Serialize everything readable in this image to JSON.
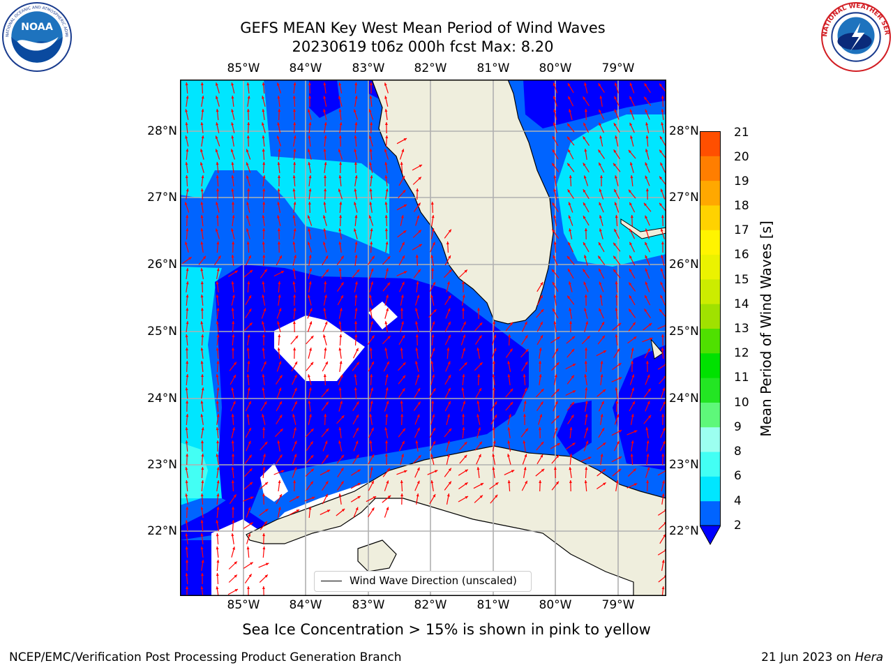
{
  "title_line1": "GEFS MEAN Key West Mean Period of Wind Waves",
  "title_line2": "20230619 t06z 000h fcst   Max: 8.20",
  "logos": {
    "left": "NOAA",
    "right": "NATIONAL WEATHER SERVICE"
  },
  "map": {
    "lon_labels": [
      "85°W",
      "84°W",
      "83°W",
      "82°W",
      "81°W",
      "80°W",
      "79°W"
    ],
    "lat_labels": [
      "28°N",
      "27°N",
      "26°N",
      "25°N",
      "24°N",
      "23°N",
      "22°N"
    ],
    "legend": "Wind Wave Direction (unscaled)",
    "arrow_color": "#ff0000",
    "land_color": "#efeedd",
    "grid_color": "#b0b0b0"
  },
  "colorbar": {
    "label": "Mean Period of Wind Waves [s]",
    "ticks": [
      "2",
      "4",
      "6",
      "8",
      "9",
      "10",
      "11",
      "12",
      "13",
      "14",
      "15",
      "16",
      "17",
      "18",
      "19",
      "20",
      "21"
    ],
    "colors": [
      "#0064ff",
      "#00e6ff",
      "#43fff4",
      "#9cfff0",
      "#5ef87a",
      "#23e523",
      "#00e100",
      "#4fe000",
      "#a0e100",
      "#ccec00",
      "#ebf200",
      "#fff400",
      "#ffd200",
      "#ffa800",
      "#ff7e00",
      "#ff4f00",
      "#ff2300",
      "#ff0000"
    ],
    "extend_color": "#0000ff"
  },
  "footer_note": "Sea Ice Concentration > 15% is shown in pink to yellow",
  "credit": "NCEP/EMC/Verification Post Processing Product Generation Branch",
  "date_prefix": "21 Jun 2023 on ",
  "date_machine": "Hera"
}
